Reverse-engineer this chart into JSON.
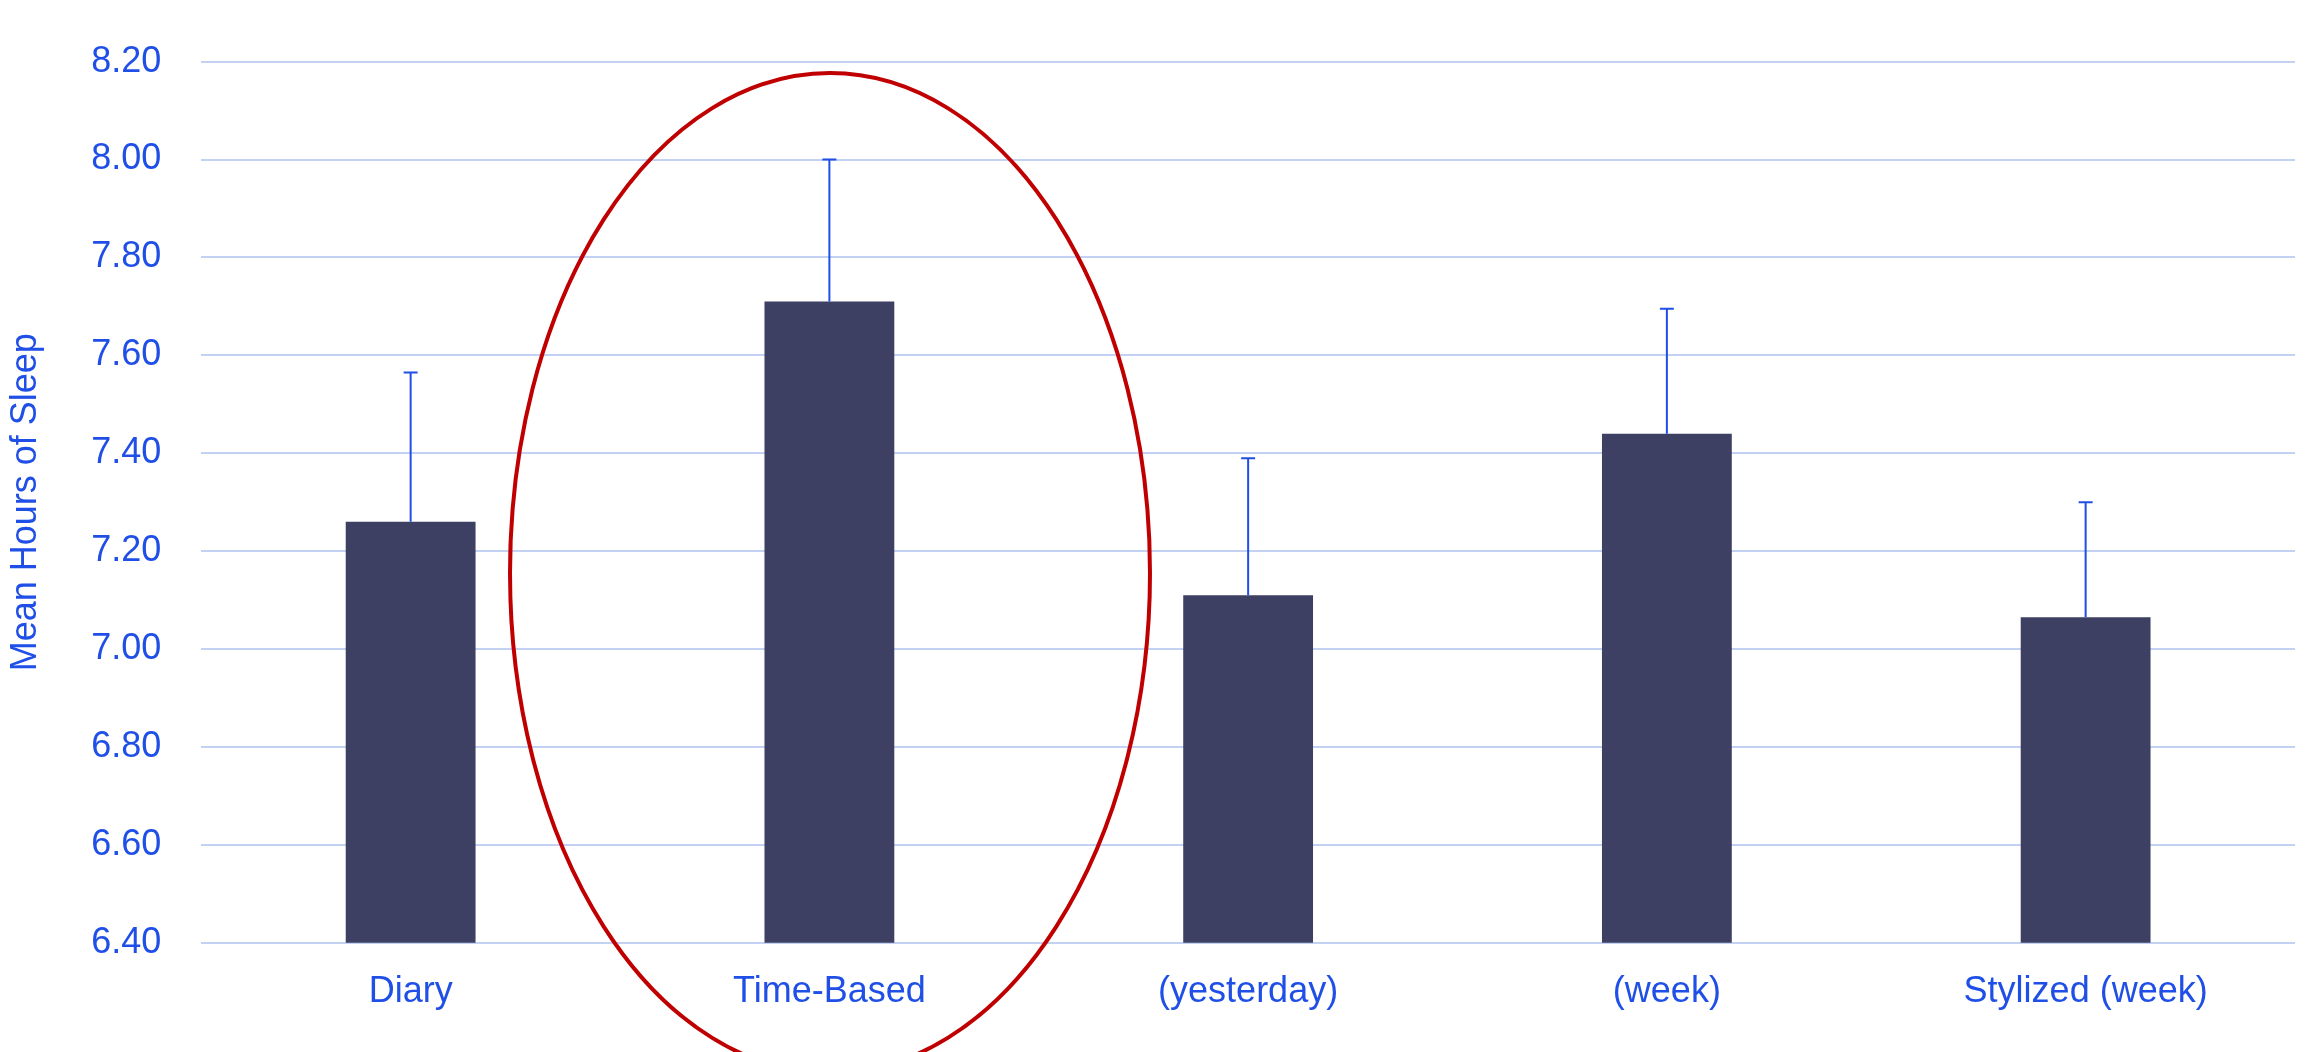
{
  "chart_data": {
    "type": "bar",
    "ylabel": "Mean Hours of Sleep",
    "categories": [
      "Diary",
      "Time-Based",
      "(yesterday)",
      "(week)",
      "Stylized (week)"
    ],
    "values": [
      7.26,
      7.71,
      7.11,
      7.44,
      7.065
    ],
    "errors": [
      [
        7.26,
        7.565
      ],
      [
        7.71,
        8.0
      ],
      [
        7.11,
        7.39
      ],
      [
        7.44,
        7.695
      ],
      [
        7.065,
        7.3
      ]
    ],
    "color": "#3d3f63",
    "ylim": [
      6.4,
      8.2
    ],
    "yticks": [
      {
        "value": 6.4,
        "label": "6.40"
      },
      {
        "value": 6.6,
        "label": "6.60"
      },
      {
        "value": 6.8,
        "label": "6.80"
      },
      {
        "value": 7.0,
        "label": "7.00"
      },
      {
        "value": 7.2,
        "label": "7.20"
      },
      {
        "value": 7.4,
        "label": "7.40"
      },
      {
        "value": 7.6,
        "label": "7.60"
      },
      {
        "value": 7.8,
        "label": "7.80"
      },
      {
        "value": 8.0,
        "label": "8.00"
      },
      {
        "value": 8.2,
        "label": "8.20"
      }
    ],
    "grid": "y",
    "legend": false
  }
}
